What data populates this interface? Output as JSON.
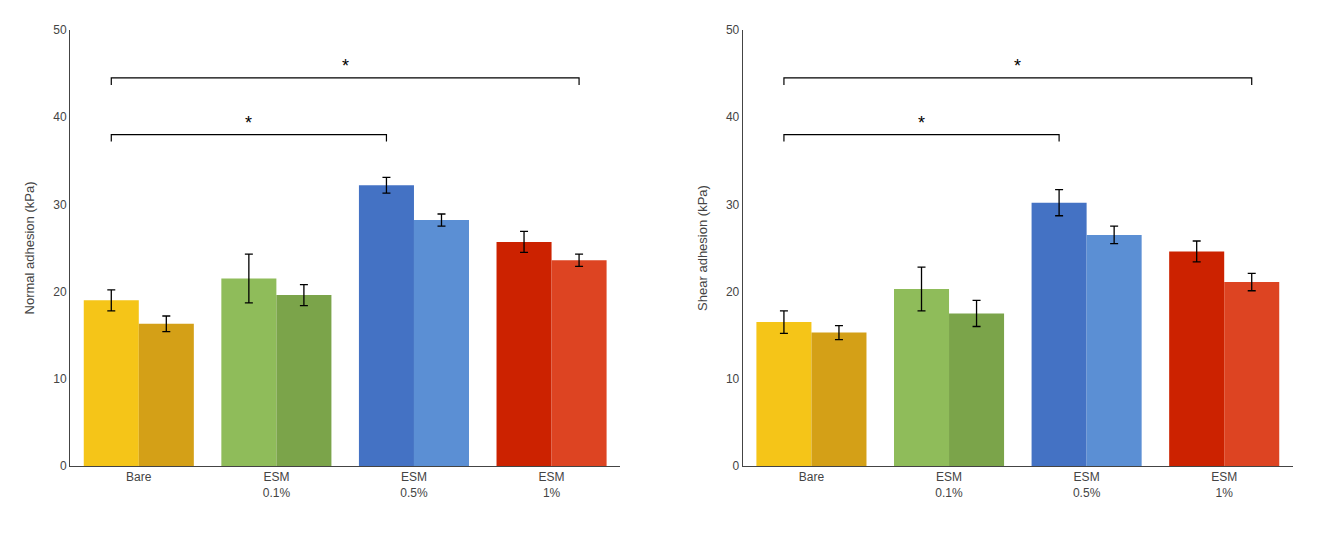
{
  "chart_data": [
    {
      "type": "bar",
      "y_label": "Normal adhesion (kPa)",
      "categories": [
        "Bare",
        "ESM\n0.1%",
        "ESM\n0.5%",
        "ESM\n1%"
      ],
      "series": [
        {
          "values": [
            19.0,
            21.5,
            32.2,
            25.7
          ],
          "errors": [
            1.2,
            2.8,
            0.9,
            1.2
          ],
          "colors": [
            "#F5C518",
            "#8FBC5A",
            "#4472C4",
            "#CC2200"
          ]
        },
        {
          "values": [
            16.3,
            19.6,
            28.2,
            23.6
          ],
          "errors": [
            0.9,
            1.2,
            0.7,
            0.7
          ],
          "colors": [
            "#D4A017",
            "#7BA44A",
            "#5B8FD4",
            "#DD4422"
          ]
        }
      ],
      "ylim": [
        0,
        50
      ],
      "yticks": [
        0,
        10,
        20,
        30,
        40,
        50
      ],
      "grid": false,
      "annotations": [
        {
          "text": "*",
          "y": 38.0,
          "from": {
            "category": 0,
            "series": 0
          },
          "to": {
            "category": 2,
            "series": 0
          }
        },
        {
          "text": "*",
          "y": 44.5,
          "from": {
            "category": 0,
            "series": 0
          },
          "to": {
            "category": 3,
            "series": 1
          }
        }
      ]
    },
    {
      "type": "bar",
      "y_label": "Shear adhesion (kPa)",
      "categories": [
        "Bare",
        "ESM\n0.1%",
        "ESM\n0.5%",
        "ESM\n1%"
      ],
      "series": [
        {
          "values": [
            16.5,
            20.3,
            30.2,
            24.6
          ],
          "errors": [
            1.3,
            2.5,
            1.5,
            1.2
          ],
          "colors": [
            "#F5C518",
            "#8FBC5A",
            "#4472C4",
            "#CC2200"
          ]
        },
        {
          "values": [
            15.3,
            17.5,
            26.5,
            21.1
          ],
          "errors": [
            0.8,
            1.5,
            1.0,
            1.0
          ],
          "colors": [
            "#D4A017",
            "#7BA44A",
            "#5B8FD4",
            "#DD4422"
          ]
        }
      ],
      "ylim": [
        0,
        50
      ],
      "yticks": [
        0,
        10,
        20,
        30,
        40,
        50
      ],
      "grid": false,
      "annotations": [
        {
          "text": "*",
          "y": 38.0,
          "from": {
            "category": 0,
            "series": 0
          },
          "to": {
            "category": 2,
            "series": 0
          }
        },
        {
          "text": "*",
          "y": 44.5,
          "from": {
            "category": 0,
            "series": 0
          },
          "to": {
            "category": 3,
            "series": 1
          }
        }
      ]
    }
  ]
}
